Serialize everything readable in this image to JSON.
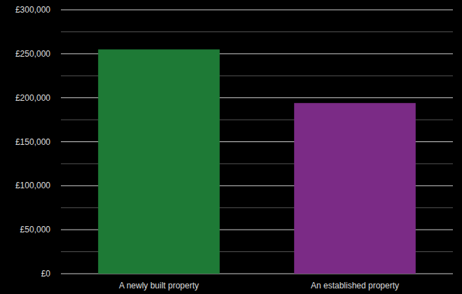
{
  "chart_data": {
    "type": "bar",
    "categories": [
      "A newly built property",
      "An established property"
    ],
    "values": [
      255000,
      194000
    ],
    "colors": [
      "#1e7a36",
      "#7b2b86"
    ],
    "ylim": [
      0,
      300000
    ],
    "yticks": [
      {
        "value": 0,
        "label": "£0"
      },
      {
        "value": 50000,
        "label": "£50,000"
      },
      {
        "value": 100000,
        "label": "£100,000"
      },
      {
        "value": 150000,
        "label": "£150,000"
      },
      {
        "value": 200000,
        "label": "£200,000"
      },
      {
        "value": 250000,
        "label": "£250,000"
      },
      {
        "value": 300000,
        "label": "£300,000"
      }
    ],
    "grid": true
  }
}
